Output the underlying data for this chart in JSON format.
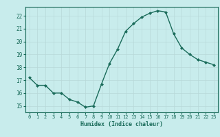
{
  "x": [
    0,
    1,
    2,
    3,
    4,
    5,
    6,
    7,
    8,
    9,
    10,
    11,
    12,
    13,
    14,
    15,
    16,
    17,
    18,
    19,
    20,
    21,
    22,
    23
  ],
  "y": [
    17.2,
    16.6,
    16.6,
    16.0,
    16.0,
    15.5,
    15.3,
    14.9,
    15.0,
    16.7,
    18.3,
    19.4,
    20.8,
    21.4,
    21.9,
    22.2,
    22.4,
    22.3,
    20.6,
    19.5,
    19.0,
    18.6,
    18.4,
    18.2
  ],
  "line_color": "#1a6b5a",
  "marker": "D",
  "marker_size": 2.0,
  "line_width": 1.0,
  "xlabel": "Humidex (Indice chaleur)",
  "xlim": [
    -0.5,
    23.5
  ],
  "ylim": [
    14.5,
    22.7
  ],
  "yticks": [
    15,
    16,
    17,
    18,
    19,
    20,
    21,
    22
  ],
  "xticks": [
    0,
    1,
    2,
    3,
    4,
    5,
    6,
    7,
    8,
    9,
    10,
    11,
    12,
    13,
    14,
    15,
    16,
    17,
    18,
    19,
    20,
    21,
    22,
    23
  ],
  "bg_color": "#c8ecec",
  "grid_color": "#b8d8d8",
  "tick_color": "#1a6b5a",
  "label_color": "#1a6b5a",
  "spine_color": "#1a6b5a"
}
